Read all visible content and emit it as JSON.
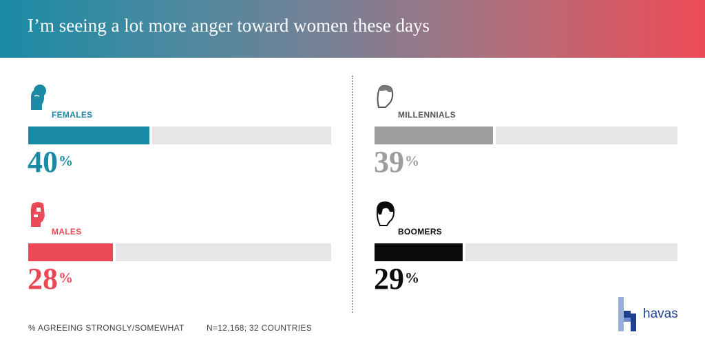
{
  "title": "I’m seeing a lot more anger toward women these days",
  "colors": {
    "females": "#1a8aa5",
    "males": "#ea4a56",
    "millennials": "#9d9d9d",
    "boomers": "#0a0a0a",
    "track": "#e6e6e8"
  },
  "chart_data": {
    "type": "bar",
    "title": "I’m seeing a lot more anger toward women these days",
    "unit": "%",
    "xlim": [
      0,
      100
    ],
    "categories": [
      "FEMALES",
      "MALES",
      "MILLENNIALS",
      "BOOMERS"
    ],
    "values": [
      40,
      28,
      39,
      29
    ],
    "labels": [
      "40",
      "28",
      "39",
      "29"
    ],
    "icons": [
      "female-head-icon",
      "male-head-icon",
      "millennial-head-icon",
      "boomer-head-icon"
    ]
  },
  "footer": {
    "note": "% AGREEING STRONGLY/SOMEWHAT",
    "sample": "N=12,168; 32 COUNTRIES"
  },
  "logo": {
    "text": "havas"
  }
}
